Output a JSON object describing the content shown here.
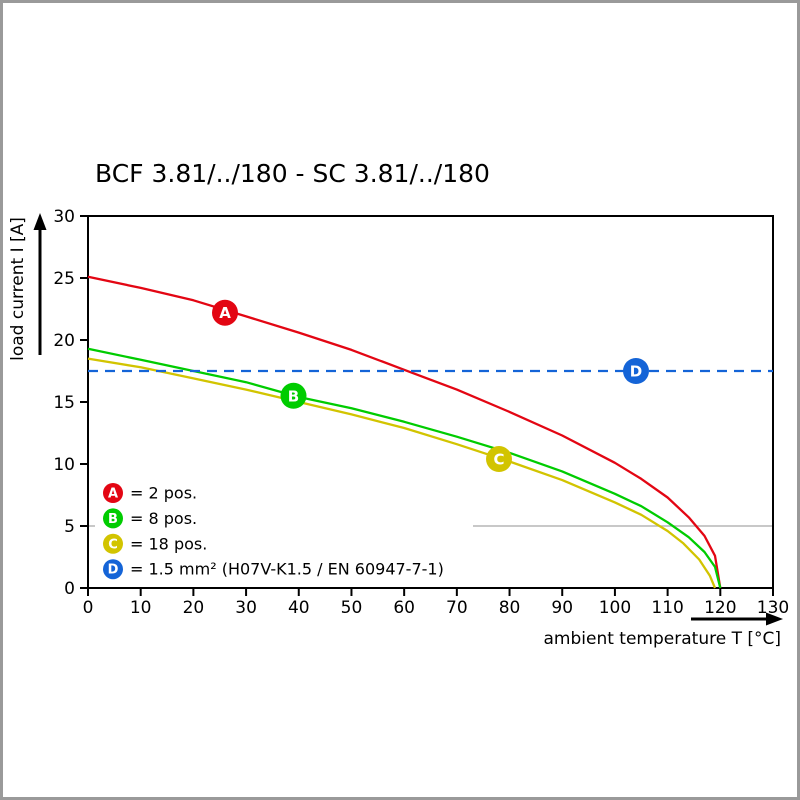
{
  "frame": {
    "border_color": "#9a9a9a",
    "background": "#ffffff"
  },
  "chart_data": {
    "type": "line",
    "title": "BCF 3.81/../180 - SC 3.81/../180",
    "xlabel": "ambient temperature T [°C]",
    "ylabel": "load current I [A]",
    "xlim": [
      0,
      130
    ],
    "ylim": [
      0,
      30
    ],
    "xticks": [
      0,
      10,
      20,
      30,
      40,
      50,
      60,
      70,
      80,
      90,
      100,
      110,
      120,
      130
    ],
    "yticks": [
      0,
      5,
      10,
      15,
      20,
      25,
      30
    ],
    "grid": false,
    "partial_gridline_y": 5,
    "legend_position": "bottom-left-inside",
    "axis_color": "#000000",
    "partial_gridline_color": "#b5b5b5",
    "series": [
      {
        "id": "A",
        "legend_label": "= 2 pos.",
        "color": "#e30613",
        "line": "solid",
        "marker_at": {
          "x": 26,
          "y": 22.2
        },
        "points": [
          [
            0,
            25.1
          ],
          [
            10,
            24.2
          ],
          [
            20,
            23.2
          ],
          [
            30,
            21.9
          ],
          [
            40,
            20.6
          ],
          [
            50,
            19.2
          ],
          [
            60,
            17.6
          ],
          [
            70,
            16.0
          ],
          [
            80,
            14.2
          ],
          [
            90,
            12.3
          ],
          [
            100,
            10.1
          ],
          [
            105,
            8.8
          ],
          [
            110,
            7.3
          ],
          [
            114,
            5.7
          ],
          [
            117,
            4.2
          ],
          [
            119,
            2.6
          ],
          [
            120,
            0
          ]
        ]
      },
      {
        "id": "B",
        "legend_label": "= 8 pos.",
        "color": "#00cc00",
        "line": "solid",
        "marker_at": {
          "x": 39,
          "y": 15.5
        },
        "points": [
          [
            0,
            19.3
          ],
          [
            10,
            18.4
          ],
          [
            20,
            17.5
          ],
          [
            30,
            16.6
          ],
          [
            40,
            15.4
          ],
          [
            50,
            14.5
          ],
          [
            60,
            13.4
          ],
          [
            70,
            12.2
          ],
          [
            80,
            10.9
          ],
          [
            90,
            9.4
          ],
          [
            100,
            7.6
          ],
          [
            105,
            6.6
          ],
          [
            110,
            5.3
          ],
          [
            114,
            4.1
          ],
          [
            117,
            2.9
          ],
          [
            119,
            1.7
          ],
          [
            120,
            0
          ]
        ]
      },
      {
        "id": "C",
        "legend_label": "= 18 pos.",
        "color": "#d2c400",
        "line": "solid",
        "marker_at": {
          "x": 78,
          "y": 10.4
        },
        "points": [
          [
            0,
            18.5
          ],
          [
            10,
            17.8
          ],
          [
            20,
            16.9
          ],
          [
            30,
            16.0
          ],
          [
            40,
            15.0
          ],
          [
            50,
            14.0
          ],
          [
            60,
            12.9
          ],
          [
            70,
            11.6
          ],
          [
            80,
            10.2
          ],
          [
            90,
            8.7
          ],
          [
            100,
            6.9
          ],
          [
            105,
            5.9
          ],
          [
            110,
            4.6
          ],
          [
            113,
            3.6
          ],
          [
            116,
            2.3
          ],
          [
            118,
            1.0
          ],
          [
            119,
            0
          ]
        ]
      },
      {
        "id": "D",
        "legend_label": "= 1.5 mm² (H07V-K1.5 / EN 60947-7-1)",
        "color": "#1464d7",
        "line": "dashed",
        "marker_at": {
          "x": 104,
          "y": 17.5
        },
        "points": [
          [
            0,
            17.5
          ],
          [
            130,
            17.5
          ]
        ]
      }
    ]
  }
}
